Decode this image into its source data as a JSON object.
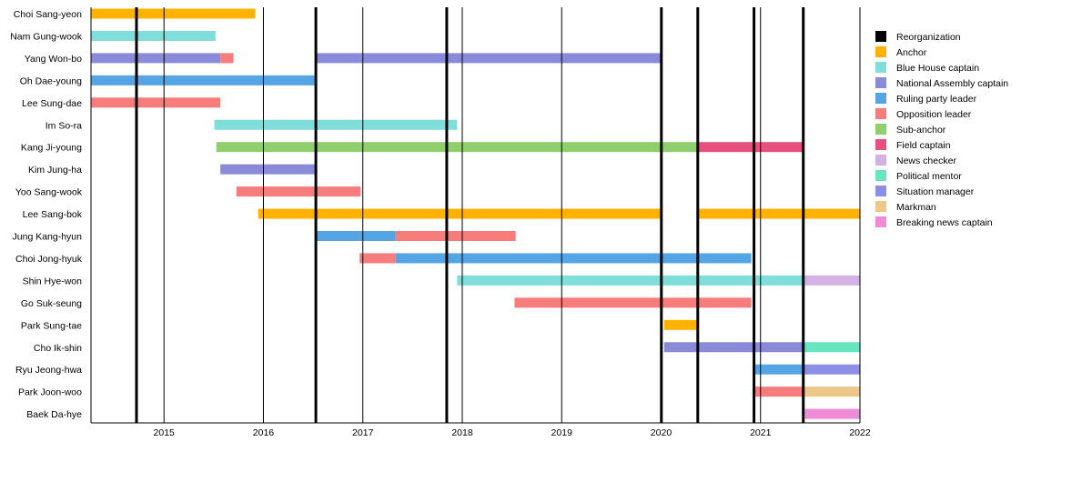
{
  "chart_data": {
    "type": "timeline",
    "x_axis": {
      "type": "date",
      "range": [
        "2014-04-08",
        "2022-01-01"
      ],
      "tick_labels": [
        "2015",
        "2016",
        "2017",
        "2018",
        "2019",
        "2020",
        "2021",
        "2022"
      ],
      "grid": true
    },
    "reorganizations": [
      "2014-09-22",
      "2016-07-12",
      "2017-11-05",
      "2020-01-02",
      "2020-05-15",
      "2020-12-08",
      "2021-06-07"
    ],
    "legend_placement": "right",
    "roles": [
      {
        "name": "Reorganization",
        "color": "#000000"
      },
      {
        "name": "Anchor",
        "color": "#FFB300"
      },
      {
        "name": "Blue House captain",
        "color": "#7FDDDA"
      },
      {
        "name": "National Assembly captain",
        "color": "#8A8AD8"
      },
      {
        "name": "Ruling party leader",
        "color": "#55A5E5"
      },
      {
        "name": "Opposition leader",
        "color": "#F77C7C"
      },
      {
        "name": "Sub-anchor",
        "color": "#8FCF6E"
      },
      {
        "name": "Field captain",
        "color": "#E5507E"
      },
      {
        "name": "News checker",
        "color": "#D4B2E6"
      },
      {
        "name": "Political mentor",
        "color": "#66E5BF"
      },
      {
        "name": "Situation manager",
        "color": "#8C8FE5"
      },
      {
        "name": "Markman",
        "color": "#EDC68A"
      },
      {
        "name": "Breaking news captain",
        "color": "#EE8CD8"
      }
    ],
    "rows": [
      {
        "name": "Choi Sang-yeon",
        "periods": [
          {
            "role": "Anchor",
            "start": "2014-04-08",
            "end": "2015-12-02"
          }
        ]
      },
      {
        "name": "Nam Gung-wook",
        "periods": [
          {
            "role": "Blue House captain",
            "start": "2014-04-08",
            "end": "2015-07-09"
          }
        ]
      },
      {
        "name": "Yang Won-bo",
        "periods": [
          {
            "role": "National Assembly captain",
            "start": "2014-04-08",
            "end": "2015-07-27"
          },
          {
            "role": "Opposition leader",
            "start": "2015-07-27",
            "end": "2015-09-13"
          },
          {
            "role": "National Assembly captain",
            "start": "2016-07-13",
            "end": "2020-01-01"
          }
        ]
      },
      {
        "name": "Oh Dae-young",
        "periods": [
          {
            "role": "Ruling party leader",
            "start": "2014-04-08",
            "end": "2016-07-12"
          }
        ]
      },
      {
        "name": "Lee Sung-dae",
        "periods": [
          {
            "role": "Opposition leader",
            "start": "2014-04-08",
            "end": "2015-07-27"
          }
        ]
      },
      {
        "name": "Im So-ra",
        "periods": [
          {
            "role": "Blue House captain",
            "start": "2015-07-05",
            "end": "2017-12-13"
          }
        ]
      },
      {
        "name": "Kang Ji-young",
        "periods": [
          {
            "role": "Sub-anchor",
            "start": "2015-07-12",
            "end": "2020-05-15"
          },
          {
            "role": "Field captain",
            "start": "2020-05-15",
            "end": "2021-06-07"
          }
        ]
      },
      {
        "name": "Kim Jung-ha",
        "periods": [
          {
            "role": "National Assembly captain",
            "start": "2015-07-27",
            "end": "2016-07-12"
          }
        ]
      },
      {
        "name": "Yoo Sang-wook",
        "periods": [
          {
            "role": "Opposition leader",
            "start": "2015-09-24",
            "end": "2016-12-24"
          }
        ]
      },
      {
        "name": "Lee Sang-bok",
        "periods": [
          {
            "role": "Anchor",
            "start": "2015-12-13",
            "end": "2020-01-01"
          },
          {
            "role": "Anchor",
            "start": "2020-05-15",
            "end": "2022-01-01"
          }
        ]
      },
      {
        "name": "Jung Kang-hyun",
        "periods": [
          {
            "role": "Ruling party leader",
            "start": "2016-07-13",
            "end": "2017-05-01"
          },
          {
            "role": "Opposition leader",
            "start": "2017-05-01",
            "end": "2018-07-16"
          }
        ]
      },
      {
        "name": "Choi Jong-hyuk",
        "periods": [
          {
            "role": "Opposition leader",
            "start": "2016-12-20",
            "end": "2017-05-01"
          },
          {
            "role": "Ruling party leader",
            "start": "2017-05-01",
            "end": "2020-11-28"
          }
        ]
      },
      {
        "name": "Shin Hye-won",
        "periods": [
          {
            "role": "Blue House captain",
            "start": "2017-12-13",
            "end": "2021-06-07"
          },
          {
            "role": "News checker",
            "start": "2021-06-07",
            "end": "2022-01-01"
          }
        ]
      },
      {
        "name": "Go Suk-seung",
        "periods": [
          {
            "role": "Opposition leader",
            "start": "2018-07-12",
            "end": "2020-11-28"
          }
        ]
      },
      {
        "name": "Park Sung-tae",
        "periods": [
          {
            "role": "Anchor",
            "start": "2020-01-12",
            "end": "2020-05-11"
          }
        ]
      },
      {
        "name": "Cho Ik-shin",
        "periods": [
          {
            "role": "National Assembly captain",
            "start": "2020-01-12",
            "end": "2021-06-07"
          },
          {
            "role": "Political mentor",
            "start": "2021-06-07",
            "end": "2022-01-01"
          }
        ]
      },
      {
        "name": "Ryu Jeong-hwa",
        "periods": [
          {
            "role": "Ruling party leader",
            "start": "2020-12-08",
            "end": "2021-06-07"
          },
          {
            "role": "Situation manager",
            "start": "2021-06-07",
            "end": "2022-01-01"
          }
        ]
      },
      {
        "name": "Park Joon-woo",
        "periods": [
          {
            "role": "Opposition leader",
            "start": "2020-12-08",
            "end": "2021-06-07"
          },
          {
            "role": "Markman",
            "start": "2021-06-07",
            "end": "2022-01-01"
          }
        ]
      },
      {
        "name": "Baek Da-hye",
        "periods": [
          {
            "role": "Breaking news captain",
            "start": "2021-06-13",
            "end": "2022-01-01"
          }
        ]
      }
    ]
  }
}
